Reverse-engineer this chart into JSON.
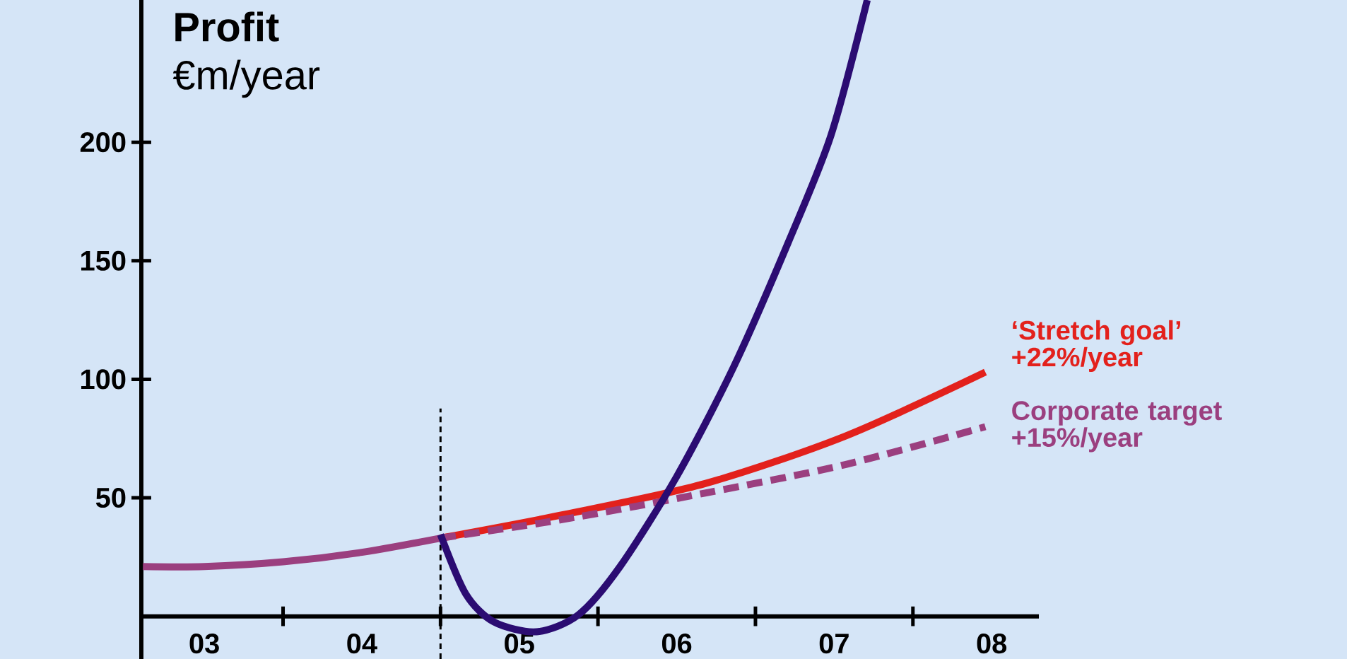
{
  "chart_data": {
    "type": "line",
    "title": "Profit",
    "subtitle": "€m/year",
    "xlim": [
      3.1,
      8.8
    ],
    "ylim": [
      -18,
      260
    ],
    "xticks": [
      {
        "value": 4,
        "label": null
      },
      {
        "value": 5,
        "label": null
      },
      {
        "value": 6,
        "label": null
      },
      {
        "value": 7,
        "label": null
      },
      {
        "value": 8,
        "label": null
      },
      {
        "value": 3.5,
        "label": "03"
      },
      {
        "value": 4.5,
        "label": "04"
      },
      {
        "value": 5.5,
        "label": "05"
      },
      {
        "value": 6.5,
        "label": "06"
      },
      {
        "value": 7.5,
        "label": "07"
      },
      {
        "value": 8.5,
        "label": "08"
      }
    ],
    "yticks": [
      50,
      100,
      150,
      200
    ],
    "grid": false,
    "marker": "none",
    "ref_lines": [
      {
        "axis": "x",
        "value": 5,
        "line_style": "dashed",
        "color": "#000000"
      }
    ],
    "series": [
      {
        "color": "#9b3f7f",
        "line_style": "solid",
        "x": [
          3.11,
          3.5,
          4.0,
          4.5,
          5.0
        ],
        "values": [
          21,
          21,
          23,
          27,
          33
        ]
      },
      {
        "name": "‘Stretch goal’ +22%/year",
        "color": "#e3211c",
        "line_style": "solid",
        "x": [
          5.0,
          5.79,
          6.68,
          7.57,
          8.46
        ],
        "values": [
          33,
          43,
          56,
          76,
          103
        ]
      },
      {
        "name": "Corporate target +15%/year",
        "color": "#9b3f7f",
        "line_style": "dashed",
        "x": [
          5.0,
          5.79,
          6.68,
          7.57,
          8.46
        ],
        "values": [
          33,
          41,
          52,
          64,
          80
        ]
      },
      {
        "color": "#2b0c72",
        "line_style": "solid",
        "x": [
          5.0,
          5.16,
          5.34,
          5.61,
          5.875,
          6.14,
          6.5,
          6.86,
          7.21,
          7.48,
          7.71
        ],
        "values": [
          34.5,
          9.5,
          -2.4,
          -6.5,
          0.6,
          21,
          59,
          105,
          158,
          203,
          260
        ]
      }
    ]
  }
}
